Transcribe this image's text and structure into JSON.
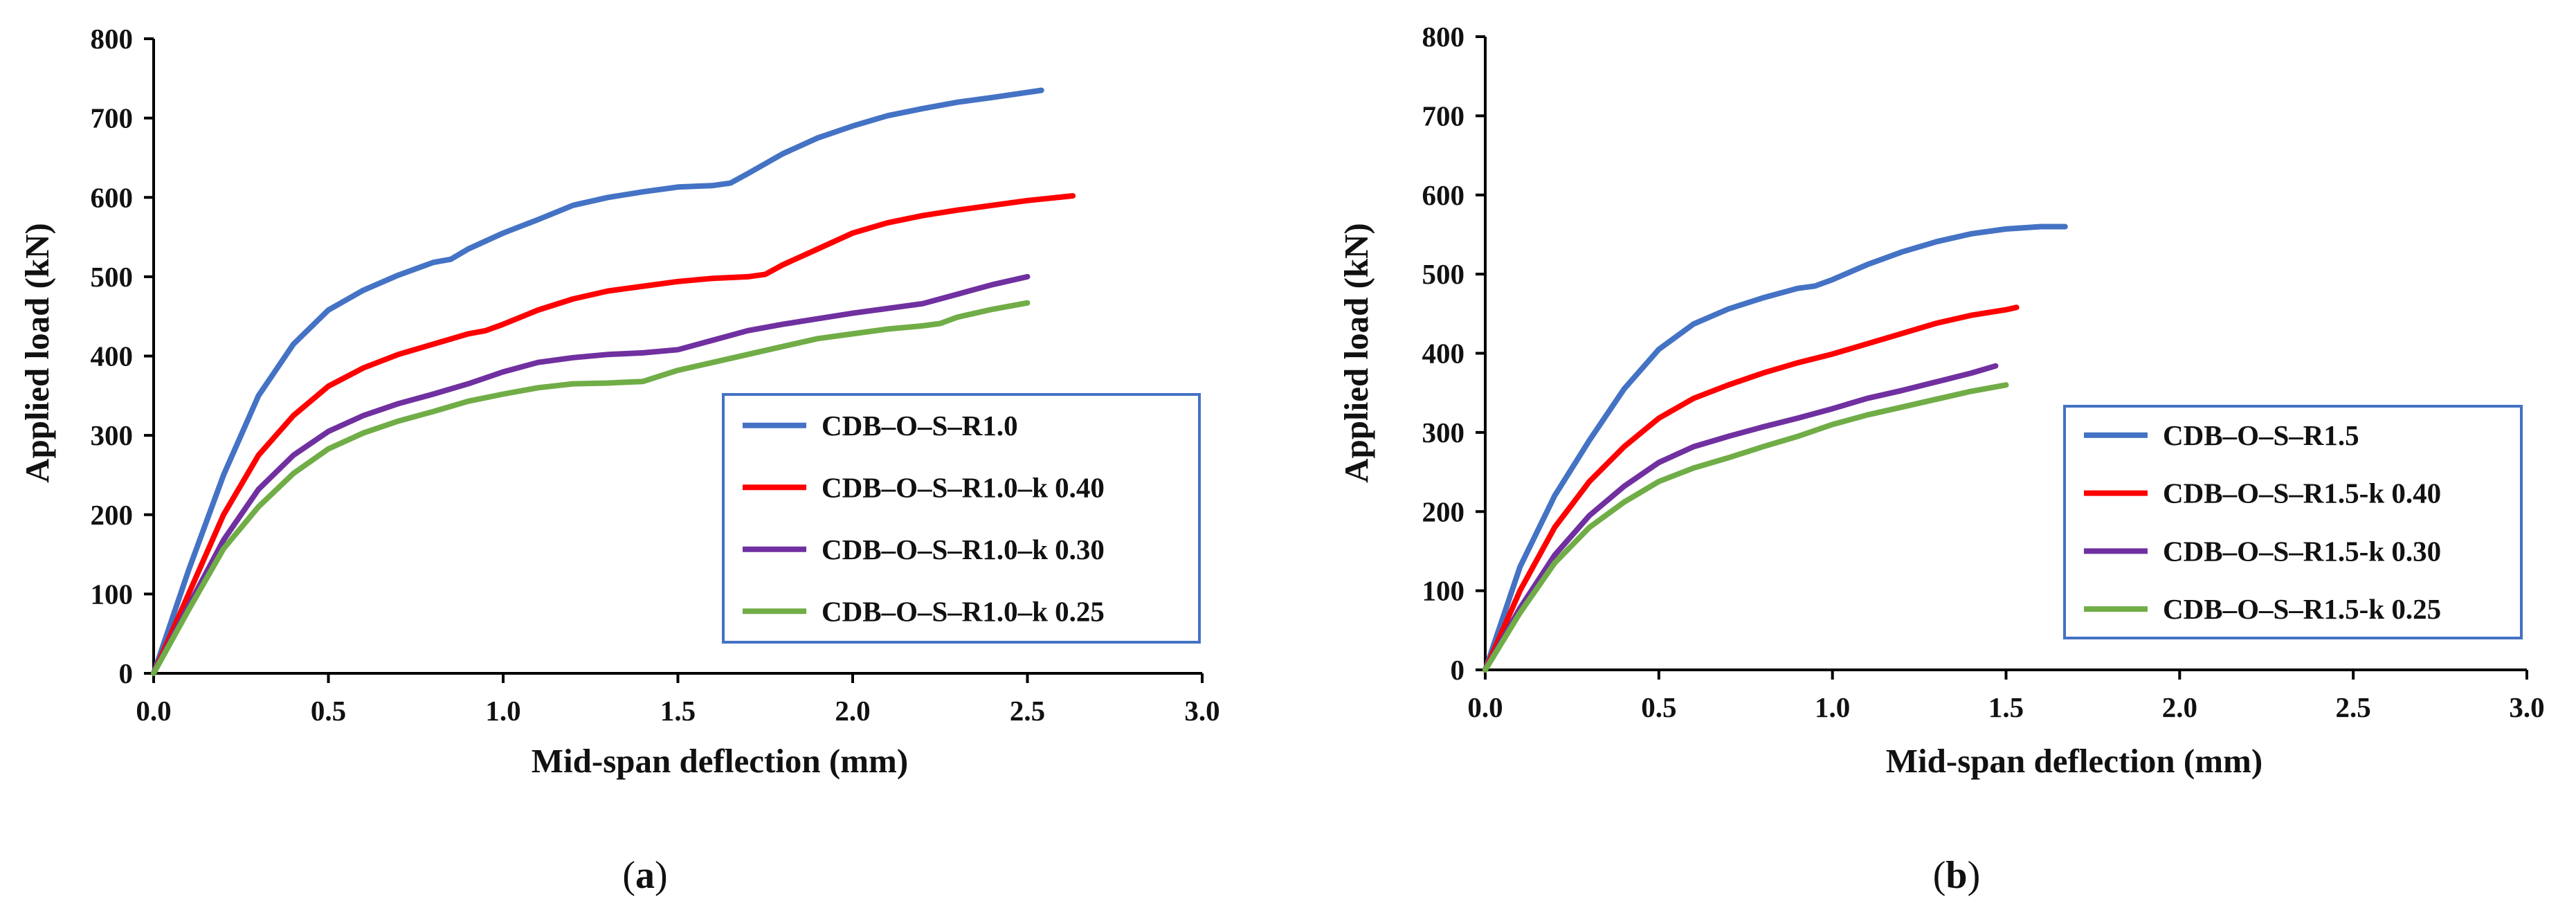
{
  "chart_data": [
    {
      "type": "line",
      "panel_label_open": "(",
      "panel_label_letter": "a",
      "panel_label_close": ")",
      "xlabel": "Mid-span deflection (mm)",
      "ylabel": "Applied load (kN)",
      "xlim": [
        0,
        3.0
      ],
      "ylim": [
        0,
        800
      ],
      "xticks": [
        "0.0",
        "0.5",
        "1.0",
        "1.5",
        "2.0",
        "2.5",
        "3.0"
      ],
      "yticks": [
        "0",
        "100",
        "200",
        "300",
        "400",
        "500",
        "600",
        "700",
        "800"
      ],
      "grid": false,
      "legend_position": "lower-right",
      "series": [
        {
          "name": "CDB–O–S–R1.0",
          "color": "#4472C4",
          "x": [
            0,
            0.1,
            0.2,
            0.3,
            0.4,
            0.5,
            0.6,
            0.7,
            0.8,
            0.85,
            0.9,
            1.0,
            1.1,
            1.2,
            1.3,
            1.4,
            1.5,
            1.6,
            1.65,
            1.7,
            1.8,
            1.9,
            2.0,
            2.1,
            2.2,
            2.3,
            2.4,
            2.54
          ],
          "y": [
            0,
            130,
            250,
            350,
            415,
            458,
            483,
            502,
            518,
            522,
            535,
            555,
            572,
            590,
            600,
            607,
            613,
            615,
            618,
            630,
            655,
            675,
            690,
            703,
            712,
            720,
            726,
            735
          ]
        },
        {
          "name": "CDB–O–S–R1.0–k 0.40",
          "color": "#FF0000",
          "x": [
            0,
            0.1,
            0.2,
            0.3,
            0.4,
            0.5,
            0.6,
            0.7,
            0.8,
            0.9,
            0.95,
            1.0,
            1.1,
            1.2,
            1.3,
            1.4,
            1.5,
            1.6,
            1.7,
            1.75,
            1.8,
            1.9,
            2.0,
            2.1,
            2.2,
            2.3,
            2.4,
            2.5,
            2.63
          ],
          "y": [
            0,
            100,
            200,
            275,
            325,
            362,
            385,
            402,
            415,
            428,
            432,
            440,
            458,
            472,
            482,
            488,
            494,
            498,
            500,
            503,
            515,
            535,
            555,
            568,
            577,
            584,
            590,
            596,
            602
          ]
        },
        {
          "name": "CDB–O–S–R1.0–k 0.30",
          "color": "#7030A0",
          "x": [
            0,
            0.1,
            0.2,
            0.3,
            0.4,
            0.5,
            0.6,
            0.7,
            0.8,
            0.9,
            1.0,
            1.1,
            1.2,
            1.3,
            1.4,
            1.5,
            1.6,
            1.7,
            1.8,
            1.9,
            2.0,
            2.1,
            2.2,
            2.3,
            2.4,
            2.5
          ],
          "y": [
            0,
            85,
            168,
            232,
            275,
            305,
            325,
            340,
            352,
            365,
            380,
            392,
            398,
            402,
            404,
            408,
            420,
            432,
            440,
            447,
            454,
            460,
            466,
            478,
            490,
            500
          ]
        },
        {
          "name": "CDB–O–S–R1.0–k 0.25",
          "color": "#70AD47",
          "x": [
            0,
            0.1,
            0.2,
            0.3,
            0.4,
            0.5,
            0.6,
            0.7,
            0.8,
            0.9,
            1.0,
            1.1,
            1.2,
            1.3,
            1.4,
            1.5,
            1.6,
            1.7,
            1.8,
            1.9,
            2.0,
            2.1,
            2.2,
            2.25,
            2.3,
            2.4,
            2.5
          ],
          "y": [
            0,
            80,
            157,
            210,
            252,
            283,
            303,
            318,
            330,
            343,
            352,
            360,
            365,
            366,
            368,
            382,
            392,
            402,
            412,
            422,
            428,
            434,
            438,
            441,
            449,
            459,
            467
          ]
        }
      ]
    },
    {
      "type": "line",
      "panel_label_open": "(",
      "panel_label_letter": "b",
      "panel_label_close": ")",
      "xlabel": "Mid-span deflection (mm)",
      "ylabel": "Applied load (kN)",
      "xlim": [
        0,
        3.0
      ],
      "ylim": [
        0,
        800
      ],
      "xticks": [
        "0.0",
        "0.5",
        "1.0",
        "1.5",
        "2.0",
        "2.5",
        "3.0"
      ],
      "yticks": [
        "0",
        "100",
        "200",
        "300",
        "400",
        "500",
        "600",
        "700",
        "800"
      ],
      "grid": false,
      "legend_position": "lower-right",
      "series": [
        {
          "name": "CDB–O–S–R1.5",
          "color": "#4472C4",
          "x": [
            0,
            0.1,
            0.2,
            0.3,
            0.4,
            0.5,
            0.6,
            0.7,
            0.8,
            0.9,
            0.95,
            1.0,
            1.1,
            1.2,
            1.3,
            1.4,
            1.5,
            1.6,
            1.67
          ],
          "y": [
            0,
            130,
            220,
            290,
            355,
            405,
            437,
            456,
            470,
            482,
            485,
            493,
            512,
            528,
            541,
            551,
            557,
            560,
            560
          ]
        },
        {
          "name": "CDB–O–S–R1.5-k 0.40",
          "color": "#FF0000",
          "x": [
            0,
            0.1,
            0.2,
            0.3,
            0.4,
            0.5,
            0.6,
            0.7,
            0.8,
            0.9,
            1.0,
            1.1,
            1.2,
            1.3,
            1.4,
            1.5,
            1.53
          ],
          "y": [
            0,
            100,
            180,
            238,
            282,
            318,
            343,
            360,
            375,
            388,
            399,
            412,
            425,
            438,
            448,
            455,
            458
          ]
        },
        {
          "name": "CDB–O–S–R1.5-k 0.30",
          "color": "#7030A0",
          "x": [
            0,
            0.1,
            0.2,
            0.3,
            0.4,
            0.5,
            0.6,
            0.7,
            0.8,
            0.9,
            1.0,
            1.1,
            1.2,
            1.3,
            1.4,
            1.47
          ],
          "y": [
            0,
            78,
            145,
            195,
            232,
            262,
            282,
            295,
            307,
            318,
            330,
            343,
            353,
            364,
            375,
            384
          ]
        },
        {
          "name": "CDB–O–S–R1.5-k 0.25",
          "color": "#70AD47",
          "x": [
            0,
            0.1,
            0.2,
            0.3,
            0.4,
            0.5,
            0.6,
            0.7,
            0.8,
            0.9,
            1.0,
            1.1,
            1.2,
            1.3,
            1.4,
            1.5
          ],
          "y": [
            0,
            72,
            135,
            180,
            212,
            238,
            255,
            268,
            282,
            295,
            310,
            322,
            332,
            342,
            352,
            360
          ]
        }
      ]
    }
  ]
}
